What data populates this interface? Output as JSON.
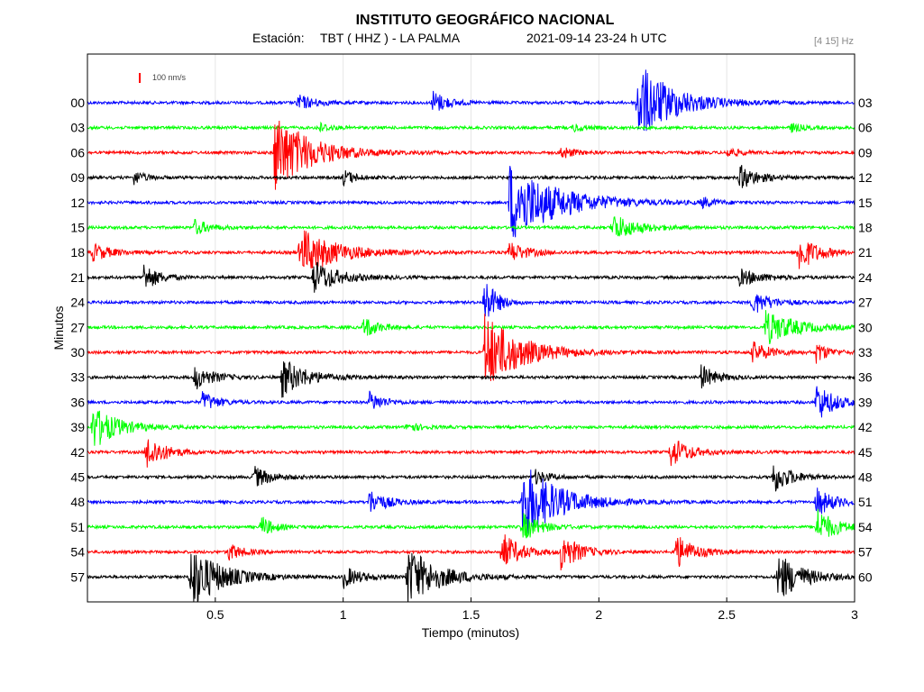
{
  "header": {
    "title": "INSTITUTO GEOGRÁFICO NACIONAL",
    "station_label": "Estación:",
    "station": "TBT ( HHZ ) - LA PALMA",
    "datetime": "2021-09-14  23-24 h UTC",
    "filter": "[4 15] Hz"
  },
  "scale_label": "100 nm/s",
  "colors": {
    "blue": "#0000ff",
    "green": "#00ff00",
    "red": "#ff0000",
    "black": "#000000"
  },
  "chart_data": {
    "type": "line",
    "title": "INSTITUTO GEOGRÁFICO NACIONAL",
    "xlabel": "Tiempo (minutos)",
    "ylabel": "Minutos",
    "xlim": [
      0,
      3
    ],
    "x_ticks": [
      "0.5",
      "1",
      "1.5",
      "2",
      "2.5",
      "3"
    ],
    "x_tick_values": [
      0.5,
      1,
      1.5,
      2,
      2.5,
      3
    ],
    "left_labels": [
      "00",
      "03",
      "06",
      "09",
      "12",
      "15",
      "18",
      "21",
      "24",
      "27",
      "30",
      "33",
      "36",
      "39",
      "42",
      "45",
      "48",
      "51",
      "54",
      "57"
    ],
    "right_labels": [
      "03",
      "06",
      "09",
      "12",
      "15",
      "18",
      "21",
      "24",
      "27",
      "30",
      "33",
      "36",
      "39",
      "42",
      "45",
      "48",
      "51",
      "54",
      "57",
      "60"
    ],
    "trace_colors": [
      "blue",
      "green",
      "red",
      "black",
      "blue",
      "green",
      "red",
      "black",
      "blue",
      "green",
      "red",
      "black",
      "blue",
      "green",
      "red",
      "black",
      "blue",
      "green",
      "red",
      "black"
    ],
    "grid": true,
    "events": [
      {
        "trace": 0,
        "t": 0.82,
        "amp": 9,
        "dur": 0.15
      },
      {
        "trace": 0,
        "t": 1.35,
        "amp": 14,
        "dur": 0.12
      },
      {
        "trace": 0,
        "t": 2.15,
        "amp": 45,
        "dur": 0.3
      },
      {
        "trace": 1,
        "t": 0.9,
        "amp": 6,
        "dur": 0.1
      },
      {
        "trace": 1,
        "t": 1.9,
        "amp": 5,
        "dur": 0.1
      },
      {
        "trace": 1,
        "t": 2.75,
        "amp": 5,
        "dur": 0.1
      },
      {
        "trace": 2,
        "t": 0.73,
        "amp": 45,
        "dur": 0.3
      },
      {
        "trace": 2,
        "t": 1.85,
        "amp": 8,
        "dur": 0.1
      },
      {
        "trace": 2,
        "t": 2.5,
        "amp": 6,
        "dur": 0.1
      },
      {
        "trace": 3,
        "t": 0.18,
        "amp": 8,
        "dur": 0.1
      },
      {
        "trace": 3,
        "t": 1.0,
        "amp": 9,
        "dur": 0.1
      },
      {
        "trace": 3,
        "t": 2.55,
        "amp": 14,
        "dur": 0.15
      },
      {
        "trace": 4,
        "t": 1.65,
        "amp": 45,
        "dur": 0.4
      },
      {
        "trace": 4,
        "t": 2.4,
        "amp": 6,
        "dur": 0.1
      },
      {
        "trace": 5,
        "t": 0.42,
        "amp": 9,
        "dur": 0.12
      },
      {
        "trace": 5,
        "t": 2.05,
        "amp": 16,
        "dur": 0.2
      },
      {
        "trace": 6,
        "t": 0.02,
        "amp": 10,
        "dur": 0.15
      },
      {
        "trace": 6,
        "t": 0.83,
        "amp": 28,
        "dur": 0.3
      },
      {
        "trace": 6,
        "t": 1.65,
        "amp": 12,
        "dur": 0.15
      },
      {
        "trace": 6,
        "t": 2.78,
        "amp": 22,
        "dur": 0.15
      },
      {
        "trace": 7,
        "t": 0.22,
        "amp": 16,
        "dur": 0.12
      },
      {
        "trace": 7,
        "t": 0.88,
        "amp": 20,
        "dur": 0.2
      },
      {
        "trace": 7,
        "t": 2.55,
        "amp": 9,
        "dur": 0.2
      },
      {
        "trace": 8,
        "t": 1.55,
        "amp": 30,
        "dur": 0.1
      },
      {
        "trace": 8,
        "t": 2.6,
        "amp": 14,
        "dur": 0.15
      },
      {
        "trace": 9,
        "t": 1.08,
        "amp": 12,
        "dur": 0.12
      },
      {
        "trace": 9,
        "t": 2.65,
        "amp": 20,
        "dur": 0.25
      },
      {
        "trace": 10,
        "t": 1.55,
        "amp": 45,
        "dur": 0.3
      },
      {
        "trace": 10,
        "t": 2.6,
        "amp": 12,
        "dur": 0.15
      },
      {
        "trace": 10,
        "t": 2.85,
        "amp": 12,
        "dur": 0.1
      },
      {
        "trace": 11,
        "t": 0.42,
        "amp": 14,
        "dur": 0.15
      },
      {
        "trace": 11,
        "t": 0.76,
        "amp": 22,
        "dur": 0.2
      },
      {
        "trace": 11,
        "t": 2.4,
        "amp": 14,
        "dur": 0.12
      },
      {
        "trace": 12,
        "t": 0.45,
        "amp": 12,
        "dur": 0.12
      },
      {
        "trace": 12,
        "t": 1.1,
        "amp": 12,
        "dur": 0.12
      },
      {
        "trace": 12,
        "t": 2.85,
        "amp": 22,
        "dur": 0.15
      },
      {
        "trace": 13,
        "t": 0.02,
        "amp": 25,
        "dur": 0.2
      },
      {
        "trace": 13,
        "t": 1.25,
        "amp": 6,
        "dur": 0.1
      },
      {
        "trace": 14,
        "t": 0.23,
        "amp": 20,
        "dur": 0.15
      },
      {
        "trace": 14,
        "t": 2.28,
        "amp": 18,
        "dur": 0.15
      },
      {
        "trace": 15,
        "t": 0.65,
        "amp": 12,
        "dur": 0.15
      },
      {
        "trace": 15,
        "t": 1.75,
        "amp": 8,
        "dur": 0.12
      },
      {
        "trace": 15,
        "t": 2.68,
        "amp": 18,
        "dur": 0.15
      },
      {
        "trace": 16,
        "t": 1.1,
        "amp": 14,
        "dur": 0.15
      },
      {
        "trace": 16,
        "t": 1.7,
        "amp": 45,
        "dur": 0.3
      },
      {
        "trace": 16,
        "t": 2.85,
        "amp": 16,
        "dur": 0.15
      },
      {
        "trace": 17,
        "t": 0.68,
        "amp": 12,
        "dur": 0.1
      },
      {
        "trace": 17,
        "t": 1.7,
        "amp": 16,
        "dur": 0.15
      },
      {
        "trace": 17,
        "t": 2.85,
        "amp": 22,
        "dur": 0.15
      },
      {
        "trace": 18,
        "t": 0.55,
        "amp": 10,
        "dur": 0.12
      },
      {
        "trace": 18,
        "t": 1.62,
        "amp": 22,
        "dur": 0.15
      },
      {
        "trace": 18,
        "t": 1.85,
        "amp": 22,
        "dur": 0.15
      },
      {
        "trace": 18,
        "t": 2.3,
        "amp": 20,
        "dur": 0.15
      },
      {
        "trace": 19,
        "t": 0.4,
        "amp": 38,
        "dur": 0.25
      },
      {
        "trace": 19,
        "t": 1.0,
        "amp": 12,
        "dur": 0.15
      },
      {
        "trace": 19,
        "t": 1.25,
        "amp": 34,
        "dur": 0.25
      },
      {
        "trace": 19,
        "t": 2.7,
        "amp": 28,
        "dur": 0.2
      }
    ]
  }
}
